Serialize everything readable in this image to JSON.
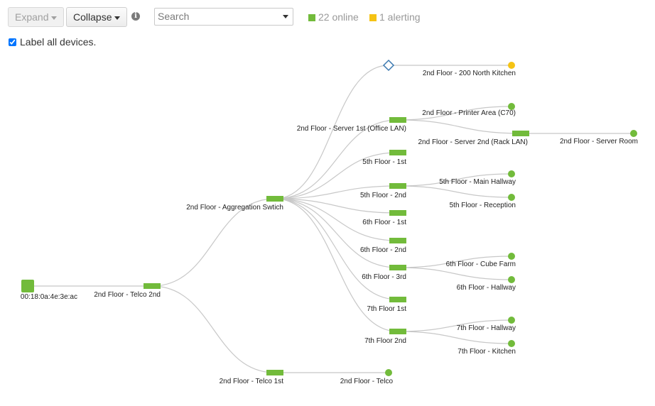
{
  "toolbar": {
    "expand_label": "Expand",
    "collapse_label": "Collapse",
    "search_placeholder": "Search",
    "online_label": "22 online",
    "alerting_label": "1 alerting",
    "label_all_devices": "Label all devices."
  },
  "colors": {
    "online": "#72bb3b",
    "alerting": "#f5c314",
    "link": "#c8c8c8",
    "unknown": "#3b79b0"
  },
  "icons": {
    "info": "info-icon",
    "dropdown": "chevron-down-icon",
    "checkbox": "checkbox-checked-icon"
  },
  "tree": {
    "nodes": [
      {
        "id": "root",
        "label": "00:18:0a:4e:3e:ac",
        "kind": "appliance",
        "status": "online"
      },
      {
        "id": "telco2",
        "label": "2nd Floor - Telco 2nd",
        "kind": "switch",
        "status": "online"
      },
      {
        "id": "agg",
        "label": "2nd Floor - Aggregation Swtich",
        "kind": "switch",
        "status": "online"
      },
      {
        "id": "telco1",
        "label": "2nd Floor - Telco 1st",
        "kind": "switch",
        "status": "online"
      },
      {
        "id": "telco",
        "label": "2nd Floor - Telco",
        "kind": "ap",
        "status": "online"
      },
      {
        "id": "diamond",
        "label": "",
        "kind": "unknown",
        "status": "unknown"
      },
      {
        "id": "kitchen200",
        "label": "2nd Floor - 200 North Kitchen",
        "kind": "ap",
        "status": "alerting"
      },
      {
        "id": "srv1",
        "label": "2nd Floor - Server 1st (Office LAN)",
        "kind": "switch",
        "status": "online"
      },
      {
        "id": "printer",
        "label": "2nd Floor - Printer Area (C70)",
        "kind": "ap",
        "status": "online"
      },
      {
        "id": "srv2",
        "label": "2nd Floor - Server 2nd (Rack LAN)",
        "kind": "switch",
        "status": "online"
      },
      {
        "id": "srvroom",
        "label": "2nd Floor - Server Room",
        "kind": "ap",
        "status": "online"
      },
      {
        "id": "f5_1",
        "label": "5th Floor - 1st",
        "kind": "switch",
        "status": "online"
      },
      {
        "id": "f5_2",
        "label": "5th Floor - 2nd",
        "kind": "switch",
        "status": "online"
      },
      {
        "id": "f5_hall",
        "label": "5th Floor - Main Hallway",
        "kind": "ap",
        "status": "online"
      },
      {
        "id": "f5_rec",
        "label": "5th Floor - Reception",
        "kind": "ap",
        "status": "online"
      },
      {
        "id": "f6_1",
        "label": "6th Floor - 1st",
        "kind": "switch",
        "status": "online"
      },
      {
        "id": "f6_2",
        "label": "6th Floor - 2nd",
        "kind": "switch",
        "status": "online"
      },
      {
        "id": "f6_3",
        "label": "6th Floor - 3rd",
        "kind": "switch",
        "status": "online"
      },
      {
        "id": "f6_cube",
        "label": "6th Floor - Cube Farm",
        "kind": "ap",
        "status": "online"
      },
      {
        "id": "f6_hall",
        "label": "6th Floor - Hallway",
        "kind": "ap",
        "status": "online"
      },
      {
        "id": "f7_1",
        "label": "7th Floor 1st",
        "kind": "switch",
        "status": "online"
      },
      {
        "id": "f7_2",
        "label": "7th Floor 2nd",
        "kind": "switch",
        "status": "online"
      },
      {
        "id": "f7_hall",
        "label": "7th Floor - Hallway",
        "kind": "ap",
        "status": "online"
      },
      {
        "id": "f7_kit",
        "label": "7th Floor - Kitchen",
        "kind": "ap",
        "status": "online"
      }
    ],
    "links": [
      [
        "root",
        "telco2"
      ],
      [
        "telco2",
        "agg"
      ],
      [
        "telco2",
        "telco1"
      ],
      [
        "telco1",
        "telco"
      ],
      [
        "agg",
        "diamond"
      ],
      [
        "diamond",
        "kitchen200"
      ],
      [
        "agg",
        "srv1"
      ],
      [
        "srv1",
        "printer"
      ],
      [
        "srv1",
        "srv2"
      ],
      [
        "srv2",
        "srvroom"
      ],
      [
        "agg",
        "f5_1"
      ],
      [
        "agg",
        "f5_2"
      ],
      [
        "f5_2",
        "f5_hall"
      ],
      [
        "f5_2",
        "f5_rec"
      ],
      [
        "agg",
        "f6_1"
      ],
      [
        "agg",
        "f6_2"
      ],
      [
        "agg",
        "f6_3"
      ],
      [
        "f6_3",
        "f6_cube"
      ],
      [
        "f6_3",
        "f6_hall"
      ],
      [
        "agg",
        "f7_1"
      ],
      [
        "agg",
        "f7_2"
      ],
      [
        "f7_2",
        "f7_hall"
      ],
      [
        "f7_2",
        "f7_kit"
      ]
    ]
  }
}
